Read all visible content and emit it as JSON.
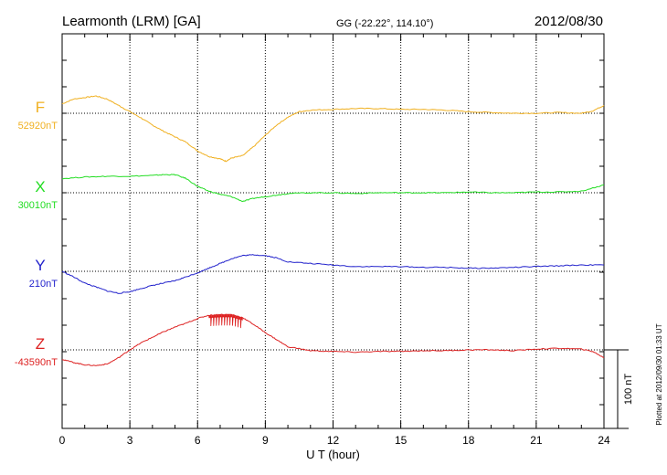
{
  "header": {
    "station": "Learmonth (LRM)  [GA]",
    "coords": "GG (-22.22°, 114.10°)",
    "date": "2012/08/30"
  },
  "side_note": "Plotted at 2012/09/30 01:33 UT",
  "scale_bar": {
    "label": "100 nT",
    "value_nT": 100
  },
  "chart_data": {
    "type": "line",
    "xlabel": "U T (hour)",
    "xlim": [
      0,
      24
    ],
    "xticks": [
      "0",
      "3",
      "6",
      "9",
      "12",
      "15",
      "18",
      "21",
      "24"
    ],
    "grid": true,
    "series": [
      {
        "name": "F",
        "baseline_label": "52920nT",
        "baseline_nT": 52920,
        "color": "#f0b020",
        "x": [
          0,
          0.5,
          1,
          1.5,
          2,
          2.5,
          3,
          3.5,
          4,
          4.5,
          5,
          5.5,
          6,
          6.5,
          7,
          7.25,
          7.5,
          8,
          8.5,
          9,
          9.5,
          10,
          10.5,
          11,
          12,
          13,
          14,
          15,
          16,
          17,
          18,
          19,
          20,
          21,
          22,
          23,
          23.5,
          24
        ],
        "values": [
          52932,
          52938,
          52940,
          52942,
          52938,
          52930,
          52922,
          52914,
          52905,
          52897,
          52890,
          52883,
          52872,
          52865,
          52862,
          52859,
          52863,
          52866,
          52878,
          52892,
          52905,
          52915,
          52922,
          52924,
          52925,
          52926,
          52926,
          52925,
          52925,
          52924,
          52922,
          52921,
          52920,
          52920,
          52921,
          52920,
          52923,
          52930
        ]
      },
      {
        "name": "X",
        "baseline_label": "30010nT",
        "baseline_nT": 30010,
        "color": "#22dd22",
        "x": [
          0,
          1,
          2,
          3,
          4,
          4.5,
          5,
          5.5,
          6,
          6.5,
          7,
          7.5,
          8,
          8.5,
          9,
          9.5,
          10,
          11,
          12,
          13,
          14,
          15,
          16,
          17,
          18,
          19,
          20,
          21,
          22,
          23,
          24
        ],
        "values": [
          30028,
          30030,
          30031,
          30031,
          30032,
          30033,
          30033,
          30028,
          30018,
          30012,
          30008,
          30005,
          29999,
          30003,
          30005,
          30007,
          30009,
          30010,
          30010,
          30009,
          30010,
          30010,
          30010,
          30010,
          30011,
          30010,
          30010,
          30011,
          30011,
          30012,
          30020
        ]
      },
      {
        "name": "Y",
        "baseline_label": "210nT",
        "baseline_nT": 210,
        "color": "#2222cc",
        "x": [
          0,
          0.5,
          1,
          1.5,
          2,
          2.5,
          3,
          3.5,
          4,
          4.5,
          5,
          5.5,
          6,
          6.5,
          7,
          7.5,
          8,
          8.5,
          9,
          9.5,
          10,
          11,
          12,
          13,
          14,
          15,
          16,
          17,
          18,
          19,
          20,
          21,
          22,
          23,
          24
        ],
        "values": [
          210,
          203,
          195,
          190,
          185,
          182,
          184,
          188,
          192,
          195,
          198,
          203,
          208,
          214,
          220,
          226,
          230,
          231,
          230,
          227,
          222,
          220,
          218,
          216,
          216,
          216,
          215,
          215,
          214,
          214,
          215,
          216,
          217,
          218,
          218
        ]
      },
      {
        "name": "Z",
        "baseline_label": "-43590nT",
        "baseline_nT": -43590,
        "color": "#dd2222",
        "x": [
          0,
          0.5,
          1,
          1.5,
          2,
          2.5,
          3,
          3.5,
          4,
          4.5,
          5,
          5.5,
          6,
          6.5,
          7,
          7.5,
          8,
          8.5,
          9,
          9.5,
          10,
          11,
          12,
          13,
          14,
          15,
          16,
          17,
          18,
          19,
          20,
          21,
          22,
          23,
          23.5,
          24
        ],
        "values": [
          -43602,
          -43606,
          -43609,
          -43610,
          -43608,
          -43600,
          -43590,
          -43581,
          -43574,
          -43567,
          -43561,
          -43556,
          -43550,
          -43546,
          -43545,
          -43545,
          -43549,
          -43558,
          -43568,
          -43577,
          -43586,
          -43591,
          -43592,
          -43593,
          -43592,
          -43592,
          -43591,
          -43591,
          -43590,
          -43590,
          -43591,
          -43589,
          -43588,
          -43589,
          -43592,
          -43600
        ]
      }
    ]
  }
}
